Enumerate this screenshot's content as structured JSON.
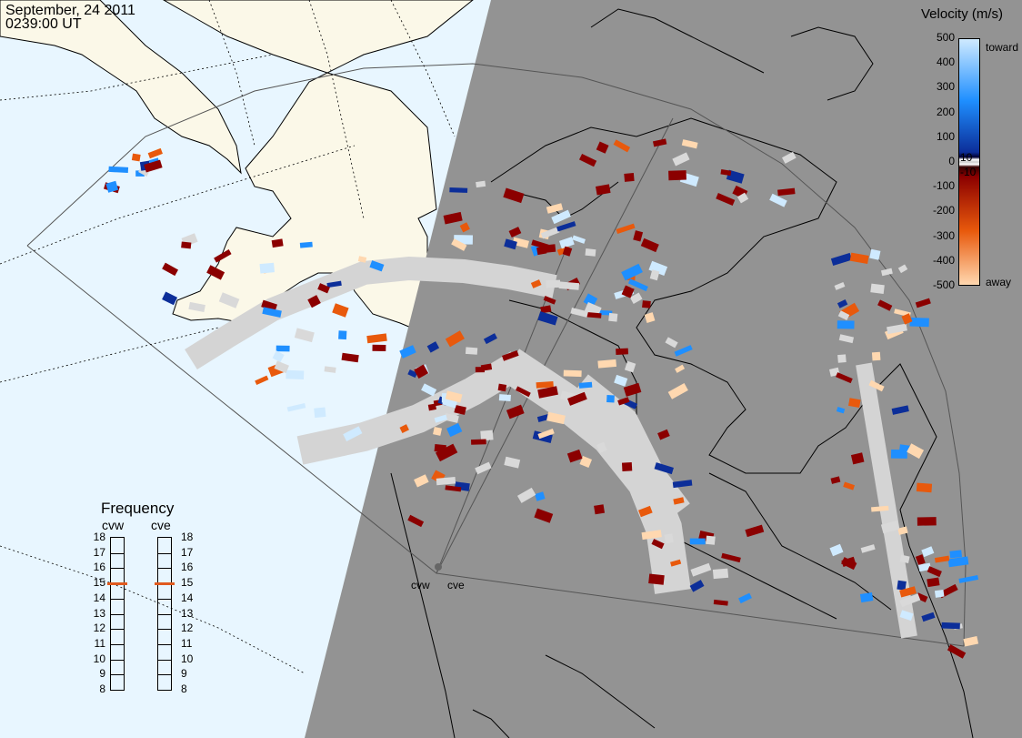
{
  "header": {
    "date": "September, 24 2011",
    "time": "0239:00 UT"
  },
  "colorbar": {
    "title": "Velocity (m/s)",
    "ticks": [
      "500",
      "400",
      "300",
      "200",
      "100",
      "0",
      "-100",
      "-200",
      "-300",
      "-400",
      "-500"
    ],
    "inner_labels": [
      "10",
      "-10"
    ],
    "toward_label": "toward",
    "away_label": "away",
    "colors": {
      "toward_light": "#cfeaff",
      "toward_mid": "#1f8fff",
      "toward_dark": "#0c2e99",
      "away_dark": "#8b0000",
      "away_mid": "#e8590c",
      "away_light": "#ffd8b0",
      "ground_scatter": "#d9d9d9"
    }
  },
  "frequency": {
    "title": "Frequency",
    "radars": [
      {
        "name": "cvw",
        "value": 15
      },
      {
        "name": "cve",
        "value": 15
      }
    ],
    "scale": [
      "18",
      "17",
      "16",
      "15",
      "14",
      "13",
      "12",
      "11",
      "10",
      "9",
      "8"
    ],
    "marker_color": "#e05a1e"
  },
  "map": {
    "radar_labels": [
      "cvw",
      "cve"
    ],
    "ocean_color": "#e8f6ff",
    "land_color": "#fbf8e8",
    "night_color": "#939393"
  }
}
